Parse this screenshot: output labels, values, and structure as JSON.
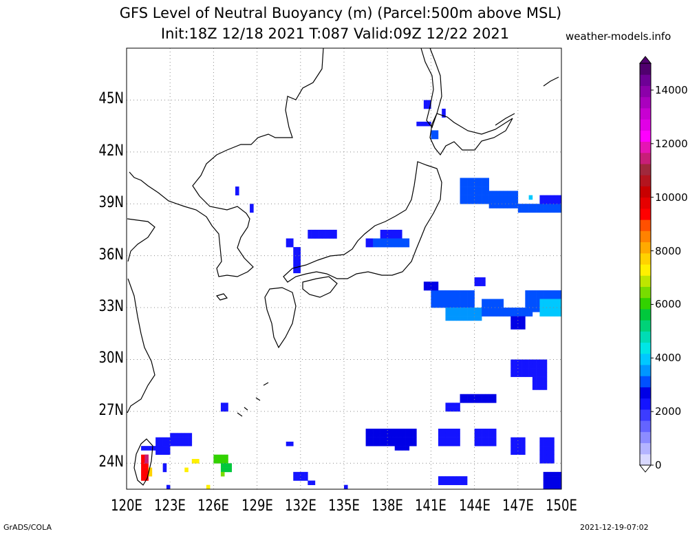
{
  "title": {
    "line1": "GFS Level of Neutral Buoyancy (m) (Parcel:500m above MSL)",
    "line2": "Init:18Z 12/18 2021 T:087 Valid:09Z 12/22 2021"
  },
  "site": "weather-models.info",
  "map": {
    "lat_labels": [
      "45N",
      "42N",
      "39N",
      "36N",
      "33N",
      "30N",
      "27N",
      "24N"
    ],
    "lon_labels": [
      "120E",
      "123E",
      "126E",
      "129E",
      "132E",
      "135E",
      "138E",
      "141E",
      "144E",
      "147E",
      "150E"
    ],
    "extent": {
      "lon": [
        120,
        150
      ],
      "lat": [
        22.5,
        48
      ]
    },
    "grid": true
  },
  "colorbar": {
    "labels": [
      "14000",
      "12000",
      "10000",
      "8000",
      "6000",
      "4000",
      "2000",
      "0"
    ],
    "colors": [
      "#d9d9ff",
      "#b4b4ff",
      "#8c8cff",
      "#6464ff",
      "#3c3cff",
      "#1414ff",
      "#0000e6",
      "#0050ff",
      "#0096ff",
      "#00c8ff",
      "#00e6e6",
      "#00dcb4",
      "#00d278",
      "#00c83c",
      "#32d200",
      "#78dc00",
      "#bee600",
      "#fff000",
      "#ffd200",
      "#ffaa00",
      "#ff8200",
      "#ff5000",
      "#ff0000",
      "#e60000",
      "#c80000",
      "#b4141e",
      "#a0283c",
      "#c81e78",
      "#e614b4",
      "#ff00ff",
      "#e100e6",
      "#c800d2",
      "#aa00be",
      "#8c00aa",
      "#6e0096",
      "#50006e"
    ]
  },
  "footer": {
    "left": "GrADS/COLA",
    "right": "2021-12-19-07:02"
  }
}
